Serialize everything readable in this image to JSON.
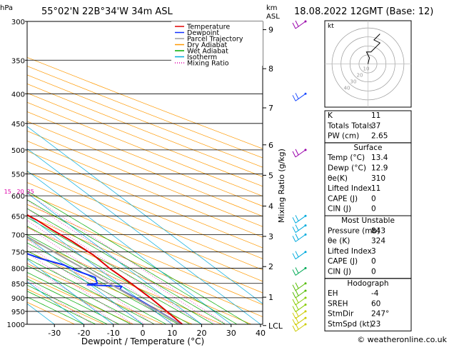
{
  "header": {
    "location": "55°02'N  22B°34'W  34m  ASL",
    "datetime": "18.08.2022  12GMT  (Base: 12)"
  },
  "labels": {
    "pressure_unit": "hPa",
    "height_unit_km": "km",
    "height_unit_asl": "ASL",
    "x_axis": "Dewpoint / Temperature (°C)",
    "mixing_ratio_axis": "Mixing Ratio (g/kg)",
    "lcl": "LCL",
    "hodo_unit": "kt",
    "copyright": "© weatheronline.co.uk"
  },
  "legend": [
    {
      "label": "Temperature",
      "color": "#e00000",
      "style": "solid"
    },
    {
      "label": "Dewpoint",
      "color": "#1030ff",
      "style": "solid"
    },
    {
      "label": "Parcel Trajectory",
      "color": "#a0a0a0",
      "style": "solid"
    },
    {
      "label": "Dry Adiabat",
      "color": "#ff9900",
      "style": "solid"
    },
    {
      "label": "Wet Adiabat",
      "color": "#00aa00",
      "style": "solid"
    },
    {
      "label": "Isotherm",
      "color": "#00aadd",
      "style": "solid"
    },
    {
      "label": "Mixing Ratio",
      "color": "#dd00aa",
      "style": "dotted"
    }
  ],
  "chart_data": {
    "type": "line",
    "pressure_levels": [
      300,
      350,
      400,
      450,
      500,
      550,
      600,
      650,
      700,
      750,
      800,
      850,
      900,
      950,
      1000
    ],
    "temperature_ticks": [
      -30,
      -20,
      -10,
      0,
      10,
      20,
      30,
      40
    ],
    "height_km_ticks": [
      {
        "label": "9",
        "p": 310
      },
      {
        "label": "8",
        "p": 362
      },
      {
        "label": "7",
        "p": 423
      },
      {
        "label": "6",
        "p": 490
      },
      {
        "label": "5",
        "p": 553
      },
      {
        "label": "4",
        "p": 625
      },
      {
        "label": "3",
        "p": 705
      },
      {
        "label": "2",
        "p": 795
      },
      {
        "label": "1",
        "p": 898
      },
      {
        "label": "LCL",
        "p": 1005
      }
    ],
    "mixing_ratio_labels": [
      "1",
      "2",
      "3",
      "4",
      "5",
      "8",
      "10",
      "15",
      "20",
      "25"
    ],
    "mixing_ratio_values": [
      1,
      2,
      3,
      4,
      5,
      8,
      10,
      15,
      20,
      25
    ],
    "series": [
      {
        "name": "Temperature",
        "color": "#e00000",
        "points": [
          [
            -22,
            300
          ],
          [
            -19.5,
            320
          ],
          [
            -17.5,
            350
          ],
          [
            -14.5,
            380
          ],
          [
            -10.5,
            400
          ],
          [
            -7,
            430
          ],
          [
            -4,
            450
          ],
          [
            -0.5,
            480
          ],
          [
            1,
            500
          ],
          [
            1.5,
            520
          ],
          [
            4,
            540
          ],
          [
            5.5,
            560
          ],
          [
            7,
            590
          ],
          [
            8.5,
            610
          ],
          [
            9.5,
            640
          ],
          [
            11,
            660
          ],
          [
            12,
            690
          ],
          [
            13.5,
            720
          ],
          [
            14.5,
            760
          ],
          [
            14,
            800
          ],
          [
            14.5,
            850
          ],
          [
            14.5,
            900
          ],
          [
            14,
            950
          ],
          [
            13.4,
            1000
          ]
        ]
      },
      {
        "name": "Dewpoint",
        "color": "#1030ff",
        "points": [
          [
            -35,
            300
          ],
          [
            -30,
            320
          ],
          [
            -27,
            340
          ],
          [
            -25,
            350
          ],
          [
            -22,
            370
          ],
          [
            -24,
            380
          ],
          [
            -23,
            400
          ],
          [
            -23,
            430
          ],
          [
            -22,
            450
          ],
          [
            -16,
            480
          ],
          [
            -15,
            490
          ],
          [
            -17,
            492
          ],
          [
            -14,
            500
          ],
          [
            -40,
            502
          ],
          [
            -25,
            508
          ],
          [
            -20,
            512
          ],
          [
            -15,
            510
          ],
          [
            -17,
            520
          ],
          [
            -12,
            540
          ],
          [
            -15,
            550
          ],
          [
            -26,
            560
          ],
          [
            -32,
            570
          ],
          [
            -28,
            580
          ],
          [
            -25,
            590
          ],
          [
            -22,
            600
          ],
          [
            -24,
            620
          ],
          [
            -26,
            640
          ],
          [
            -22,
            660
          ],
          [
            -14,
            690
          ],
          [
            -11,
            710
          ],
          [
            -10,
            740
          ],
          [
            -5,
            770
          ],
          [
            0,
            790
          ],
          [
            2,
            810
          ],
          [
            5,
            830
          ],
          [
            3,
            850
          ],
          [
            -1,
            855
          ],
          [
            10,
            860
          ],
          [
            8,
            870
          ],
          [
            9,
            890
          ],
          [
            10,
            910
          ],
          [
            11,
            940
          ],
          [
            12,
            970
          ],
          [
            12.9,
            1000
          ]
        ]
      },
      {
        "name": "Parcel Trajectory",
        "color": "#a0a0a0",
        "points": [
          [
            13.4,
            1000
          ],
          [
            13,
            1005
          ],
          [
            11,
            950
          ],
          [
            9,
            900
          ],
          [
            7,
            850
          ],
          [
            5,
            800
          ],
          [
            2.5,
            750
          ],
          [
            0,
            700
          ],
          [
            -3,
            650
          ],
          [
            -6.5,
            600
          ],
          [
            -10.5,
            550
          ],
          [
            -15,
            500
          ],
          [
            -20,
            450
          ],
          [
            -26,
            400
          ],
          [
            -33,
            350
          ],
          [
            -42,
            300
          ]
        ]
      }
    ],
    "wind_barbs": [
      {
        "p": 300,
        "color": "#9900aa"
      },
      {
        "p": 400,
        "color": "#1a4aff"
      },
      {
        "p": 500,
        "color": "#9900aa"
      },
      {
        "p": 650,
        "color": "#00aadd"
      },
      {
        "p": 675,
        "color": "#00aadd"
      },
      {
        "p": 700,
        "color": "#00aadd"
      },
      {
        "p": 750,
        "color": "#00aadd"
      },
      {
        "p": 800,
        "color": "#00aa55"
      },
      {
        "p": 850,
        "color": "#55bb00"
      },
      {
        "p": 875,
        "color": "#55bb00"
      },
      {
        "p": 900,
        "color": "#88cc00"
      },
      {
        "p": 925,
        "color": "#88cc00"
      },
      {
        "p": 950,
        "color": "#cccc00"
      },
      {
        "p": 975,
        "color": "#cccc00"
      },
      {
        "p": 1000,
        "color": "#cccc00"
      }
    ]
  },
  "hodograph": {
    "rings": [
      "10",
      "20",
      "30",
      "40"
    ],
    "trace": [
      [
        0,
        0
      ],
      [
        0.5,
        2
      ],
      [
        1,
        4
      ],
      [
        0,
        6
      ],
      [
        -1,
        8
      ],
      [
        2,
        8
      ],
      [
        4,
        10
      ],
      [
        6,
        12
      ],
      [
        8,
        14
      ],
      [
        4,
        16
      ],
      [
        8,
        20
      ]
    ]
  },
  "indices": {
    "general": [
      {
        "label": "K",
        "value": "11"
      },
      {
        "label": "Totals Totals",
        "value": "37"
      },
      {
        "label": "PW (cm)",
        "value": "2.65"
      }
    ],
    "surface": {
      "title": "Surface",
      "rows": [
        {
          "label": "Temp (°C)",
          "value": "13.4"
        },
        {
          "label": "Dewp (°C)",
          "value": "12.9"
        },
        {
          "label": "θe(K)",
          "value": "310"
        },
        {
          "label": "Lifted Index",
          "value": "11"
        },
        {
          "label": "CAPE (J)",
          "value": "0"
        },
        {
          "label": "CIN (J)",
          "value": "0"
        }
      ]
    },
    "most_unstable": {
      "title": "Most Unstable",
      "rows": [
        {
          "label": "Pressure (mb)",
          "value": "843"
        },
        {
          "label": "θe (K)",
          "value": "324"
        },
        {
          "label": "Lifted Index",
          "value": "3"
        },
        {
          "label": "CAPE (J)",
          "value": "0"
        },
        {
          "label": "CIN (J)",
          "value": "0"
        }
      ]
    },
    "hodograph_params": {
      "title": "Hodograph",
      "rows": [
        {
          "label": "EH",
          "value": "-4"
        },
        {
          "label": "SREH",
          "value": "60"
        },
        {
          "label": "StmDir",
          "value": "247°"
        },
        {
          "label": "StmSpd (kt)",
          "value": "23"
        }
      ]
    }
  }
}
